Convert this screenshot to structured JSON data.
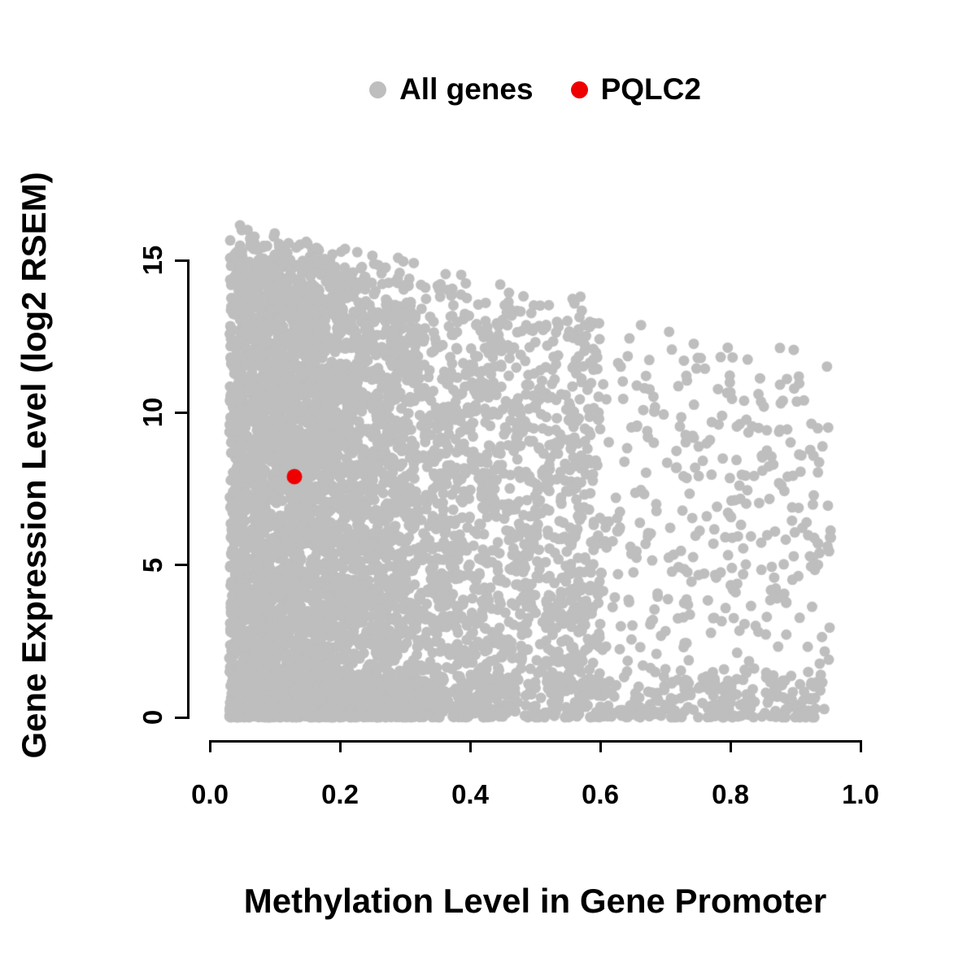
{
  "chart_data": {
    "type": "scatter",
    "title": "",
    "xlabel": "Methylation Level in Gene Promoter",
    "ylabel": "Gene Expression Level (log2 RSEM)",
    "xlim": [
      0.0,
      1.0
    ],
    "ylim": [
      0,
      17
    ],
    "x_ticks": [
      0.0,
      0.2,
      0.4,
      0.6,
      0.8,
      1.0
    ],
    "x_tick_labels": [
      "0.0",
      "0.2",
      "0.4",
      "0.6",
      "0.8",
      "1.0"
    ],
    "y_ticks": [
      0,
      5,
      10,
      15
    ],
    "y_tick_labels": [
      "0",
      "5",
      "10",
      "15"
    ],
    "grid": false,
    "legend": {
      "position": "top-center",
      "entries": [
        {
          "label": "All genes",
          "color": "#bebebe"
        },
        {
          "label": "PQLC2",
          "color": "#ee0000"
        }
      ]
    },
    "series": [
      {
        "name": "All genes",
        "type": "cloud",
        "color": "#bebebe",
        "marker_radius_px": 6.5,
        "n_points": 6500,
        "seed": 1234,
        "x_range": [
          0.02,
          0.955
        ],
        "upper_envelope": {
          "y_at_x0": 16.6,
          "y_at_x1": 11.8
        },
        "description": "Dense cloud of all genes: expression spans 0 to ~16.6 at low promoter methylation; the upper bound of expression declines to ~12 as methylation approaches 1.0; point density is highest below methylation 0.3 and along the y=0 baseline."
      },
      {
        "name": "PQLC2",
        "type": "points",
        "color": "#ee0000",
        "marker_radius_px": 9.5,
        "points": [
          [
            0.13,
            7.9
          ]
        ]
      }
    ]
  }
}
